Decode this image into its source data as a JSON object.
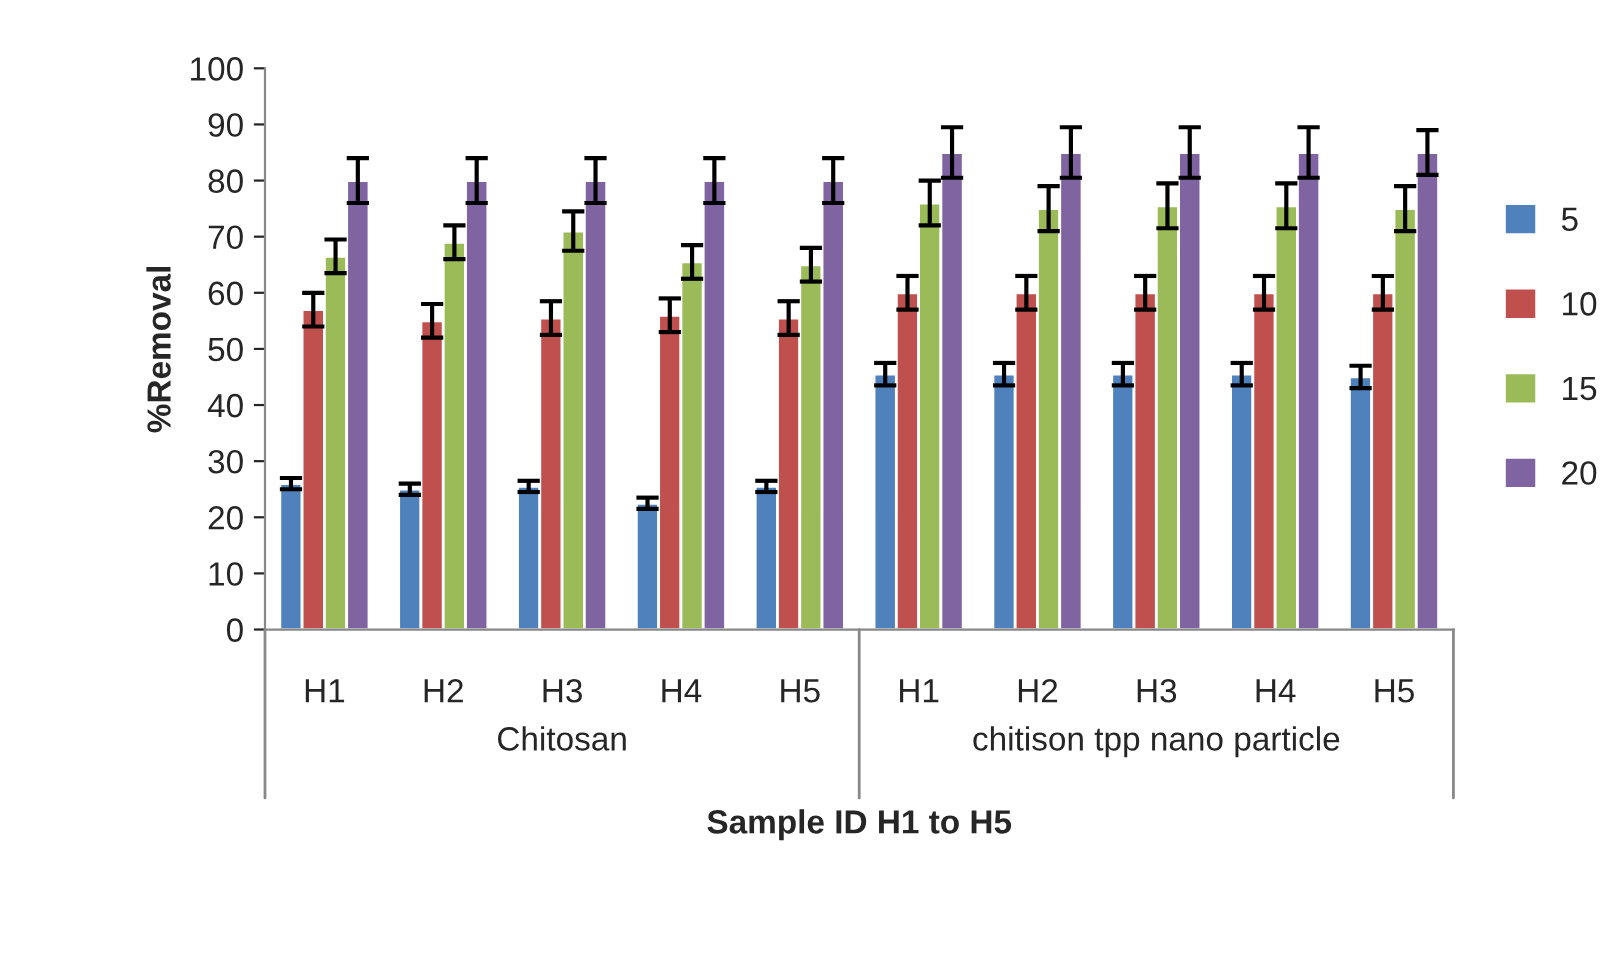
{
  "chart_data": {
    "type": "bar",
    "xlabel": "Sample ID H1 to H5",
    "ylabel": "%Removal",
    "categories": [
      "H1",
      "H2",
      "H3",
      "H4",
      "H5",
      "H1",
      "H2",
      "H3",
      "H4",
      "H5"
    ],
    "annotations": [
      "Chitosan",
      "chitison tpp nano particle"
    ],
    "series": [
      {
        "name": "5",
        "color": "#4f81bd",
        "values": [
          26,
          25,
          25.5,
          22.5,
          25.5,
          45.5,
          45.5,
          45.5,
          45.5,
          45
        ],
        "errors": [
          1,
          1,
          1,
          1,
          1,
          2,
          2,
          2,
          2,
          2
        ]
      },
      {
        "name": "10",
        "color": "#c0504d",
        "values": [
          57,
          55,
          55.5,
          56,
          55.5,
          60,
          60,
          60,
          60,
          60
        ],
        "errors": [
          3,
          3,
          3,
          3,
          3,
          3,
          3,
          3,
          3,
          3
        ]
      },
      {
        "name": "15",
        "color": "#9bbb59",
        "values": [
          66.5,
          69,
          71,
          65.5,
          65,
          76,
          75,
          75.5,
          75.5,
          75
        ],
        "errors": [
          3,
          3,
          3.5,
          3,
          3,
          4,
          4,
          4,
          4,
          4
        ]
      },
      {
        "name": "20",
        "color": "#8064a2",
        "values": [
          80,
          80,
          80,
          80,
          80,
          85,
          85,
          85,
          85,
          85
        ],
        "errors": [
          4,
          4,
          4,
          4,
          4,
          4.5,
          4.5,
          4.5,
          4.5,
          4
        ]
      }
    ],
    "ylim": [
      0,
      100
    ],
    "yticks": [
      0,
      10,
      20,
      30,
      40,
      50,
      60,
      70,
      80,
      90,
      100
    ],
    "grid": false,
    "legend": "right"
  }
}
